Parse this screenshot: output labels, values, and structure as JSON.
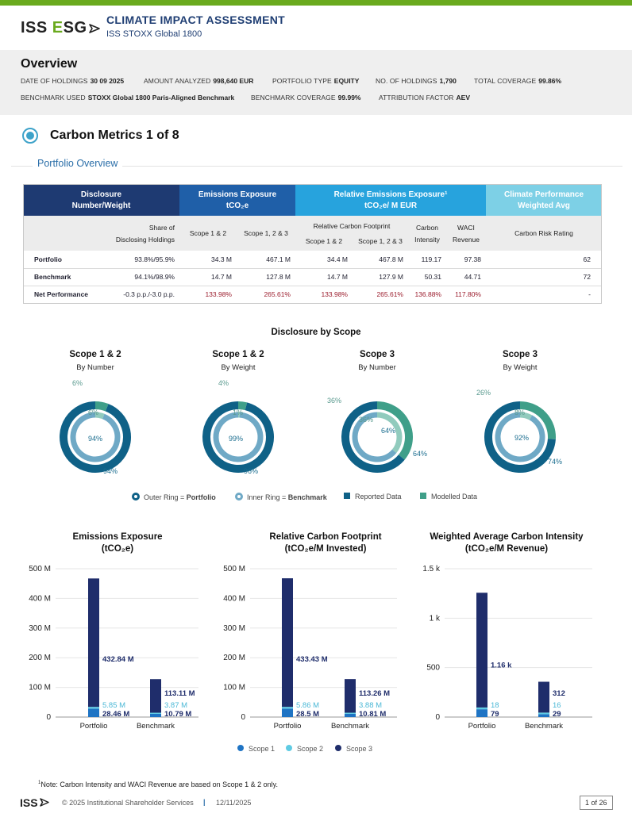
{
  "header": {
    "logo_text": "ISS ESG",
    "logo_part1": "ISS ",
    "logo_part2": "E",
    "logo_part3": "SG",
    "title": "CLIMATE IMPACT ASSESSMENT",
    "subtitle": "ISS STOXX Global 1800",
    "accent_color": "#6aaa1e",
    "title_color": "#1f3e73"
  },
  "overview": {
    "title": "Overview",
    "row1": [
      {
        "label": "DATE OF HOLDINGS",
        "value": "30 09 2025"
      },
      {
        "label": "AMOUNT ANALYZED",
        "value": "998,640 EUR"
      },
      {
        "label": "PORTFOLIO TYPE",
        "value": "EQUITY"
      },
      {
        "label": "NO. OF HOLDINGS",
        "value": "1,790"
      },
      {
        "label": "TOTAL COVERAGE",
        "value": "99.86%"
      }
    ],
    "row2": [
      {
        "label": "BENCHMARK USED",
        "value": "STOXX Global 1800 Paris-Aligned Benchmark"
      },
      {
        "label": "BENCHMARK COVERAGE",
        "value": "99.99%"
      },
      {
        "label": "ATTRIBUTION FACTOR",
        "value": "AEV"
      }
    ]
  },
  "section": {
    "title": "Carbon Metrics 1 of 8",
    "subtitle": "Portfolio Overview"
  },
  "table": {
    "groups": [
      {
        "title": "Disclosure",
        "sub": "Number/Weight",
        "color": "#1e3a72"
      },
      {
        "title": "Emissions Exposure",
        "sub": "tCO₂e",
        "color": "#1f5fa8"
      },
      {
        "title": "Relative Emissions Exposure¹",
        "sub": "tCO₂e/ M EUR",
        "color": "#27a3dd"
      },
      {
        "title": "Climate Performance",
        "sub": "Weighted Avg",
        "color": "#7dd0e6"
      }
    ],
    "subheaders": {
      "share": "Share of",
      "share2": "Disclosing Holdings",
      "scope12": "Scope 1 & 2",
      "scope123": "Scope 1, 2 & 3",
      "rcf": "Relative Carbon Footprint",
      "rcf_scope12": "Scope 1 & 2",
      "rcf_scope123": "Scope 1, 2 & 3",
      "ci": "Carbon",
      "ci2": "Intensity",
      "waci": "WACI",
      "waci2": "Revenue",
      "crr": "Carbon Risk Rating"
    },
    "rows": [
      {
        "label": "Portfolio",
        "share": "93.8%/95.9%",
        "ee12": "34.3 M",
        "ee123": "467.1 M",
        "rcf12": "34.4 M",
        "rcf123": "467.8 M",
        "ci": "119.17",
        "waci": "97.38",
        "crr": "62"
      },
      {
        "label": "Benchmark",
        "share": "94.1%/98.9%",
        "ee12": "14.7 M",
        "ee123": "127.8 M",
        "rcf12": "14.7 M",
        "rcf123": "127.9 M",
        "ci": "50.31",
        "waci": "44.71",
        "crr": "72"
      },
      {
        "label": "Net Performance",
        "share": "-0.3 p.p./-3.0 p.p.",
        "ee12": "133.98%",
        "ee123": "265.61%",
        "rcf12": "133.98%",
        "rcf123": "265.61%",
        "ci": "136.88%",
        "waci": "117.80%",
        "crr": "-"
      }
    ]
  },
  "disclosure": {
    "title": "Disclosure by Scope",
    "donuts": [
      {
        "title": "Scope 1 & 2",
        "sub": "By Number",
        "outer_reported": 94,
        "outer_modelled": 6,
        "inner_reported": 94,
        "inner_modelled": 6,
        "outer_reported_label": "94%",
        "outer_modelled_label": "6%",
        "inner_reported_label": "94%",
        "inner_modelled_label": "6%"
      },
      {
        "title": "Scope 1 & 2",
        "sub": "By Weight",
        "outer_reported": 96,
        "outer_modelled": 4,
        "inner_reported": 99,
        "inner_modelled": 1,
        "outer_reported_label": "96%",
        "outer_modelled_label": "4%",
        "inner_reported_label": "99%",
        "inner_modelled_label": "1%"
      },
      {
        "title": "Scope 3",
        "sub": "By Number",
        "outer_reported": 64,
        "outer_modelled": 36,
        "inner_reported": 64,
        "inner_modelled": 36,
        "outer_reported_label": "64%",
        "outer_modelled_label": "36%",
        "inner_reported_label": "64%",
        "inner_modelled_label": "36%"
      },
      {
        "title": "Scope 3",
        "sub": "By Weight",
        "outer_reported": 74,
        "outer_modelled": 26,
        "inner_reported": 92,
        "inner_modelled": 8,
        "outer_reported_label": "74%",
        "outer_modelled_label": "26%",
        "inner_reported_label": "92%",
        "inner_modelled_label": "8%"
      }
    ],
    "legend": {
      "outer_a": "Outer Ring = ",
      "outer_b": "Portfolio",
      "inner_a": "Inner Ring = ",
      "inner_b": "Benchmark",
      "reported": "Reported Data",
      "modelled": "Modelled Data"
    },
    "colors": {
      "reported": "#0f6187",
      "reported_inner": "#6fa9c6",
      "modelled": "#3f9f89",
      "modelled_inner": "#91cbbd"
    }
  },
  "chart_data": [
    {
      "type": "bar",
      "title": "Emissions Exposure",
      "subtitle": "(tCO₂e)",
      "categories": [
        "Portfolio",
        "Benchmark"
      ],
      "series": [
        {
          "name": "Scope 1",
          "values": [
            28.46,
            10.79
          ]
        },
        {
          "name": "Scope 2",
          "values": [
            5.85,
            3.87
          ]
        },
        {
          "name": "Scope 3",
          "values": [
            432.84,
            113.11
          ]
        }
      ],
      "labels": [
        [
          "28.46 M",
          "5.85 M",
          "432.84 M"
        ],
        [
          "10.79 M",
          "3.87 M",
          "113.11 M"
        ]
      ],
      "ylim": [
        0,
        500
      ],
      "yticks": [
        0,
        100,
        200,
        300,
        400,
        500
      ],
      "ytick_labels": [
        "0",
        "100 M",
        "200 M",
        "300 M",
        "400 M",
        "500 M"
      ]
    },
    {
      "type": "bar",
      "title": "Relative Carbon Footprint",
      "subtitle": "(tCO₂e/M Invested)",
      "categories": [
        "Portfolio",
        "Benchmark"
      ],
      "series": [
        {
          "name": "Scope 1",
          "values": [
            28.5,
            10.81
          ]
        },
        {
          "name": "Scope 2",
          "values": [
            5.86,
            3.88
          ]
        },
        {
          "name": "Scope 3",
          "values": [
            433.43,
            113.26
          ]
        }
      ],
      "labels": [
        [
          "28.5 M",
          "5.86 M",
          "433.43 M"
        ],
        [
          "10.81 M",
          "3.88 M",
          "113.26 M"
        ]
      ],
      "ylim": [
        0,
        500
      ],
      "yticks": [
        0,
        100,
        200,
        300,
        400,
        500
      ],
      "ytick_labels": [
        "0",
        "100 M",
        "200 M",
        "300 M",
        "400 M",
        "500 M"
      ]
    },
    {
      "type": "bar",
      "title": "Weighted Average Carbon Intensity",
      "subtitle": "(tCO₂e/M Revenue)",
      "categories": [
        "Portfolio",
        "Benchmark"
      ],
      "series": [
        {
          "name": "Scope 1",
          "values": [
            79,
            29
          ]
        },
        {
          "name": "Scope 2",
          "values": [
            18,
            16
          ]
        },
        {
          "name": "Scope 3",
          "values": [
            1160,
            312
          ]
        }
      ],
      "labels": [
        [
          "79",
          "18",
          "1.16 k"
        ],
        [
          "29",
          "16",
          "312"
        ]
      ],
      "ylim": [
        0,
        1500
      ],
      "yticks": [
        0,
        500,
        1000,
        1500
      ],
      "ytick_labels": [
        "0",
        "500",
        "1 k",
        "1.5 k"
      ]
    }
  ],
  "bar_legend": [
    {
      "name": "Scope 1",
      "color": "#1f74c4"
    },
    {
      "name": "Scope 2",
      "color": "#5fcbe3"
    },
    {
      "name": "Scope 3",
      "color": "#1f2d6b"
    }
  ],
  "footer": {
    "note_sup": "1",
    "note": "Note: Carbon Intensity and WACI Revenue are based on Scope 1 & 2 only.",
    "logo": "ISS",
    "copyright": "© 2025 Institutional Shareholder Services",
    "separator": "|",
    "date": "12/11/2025",
    "page": "1 of 26"
  }
}
